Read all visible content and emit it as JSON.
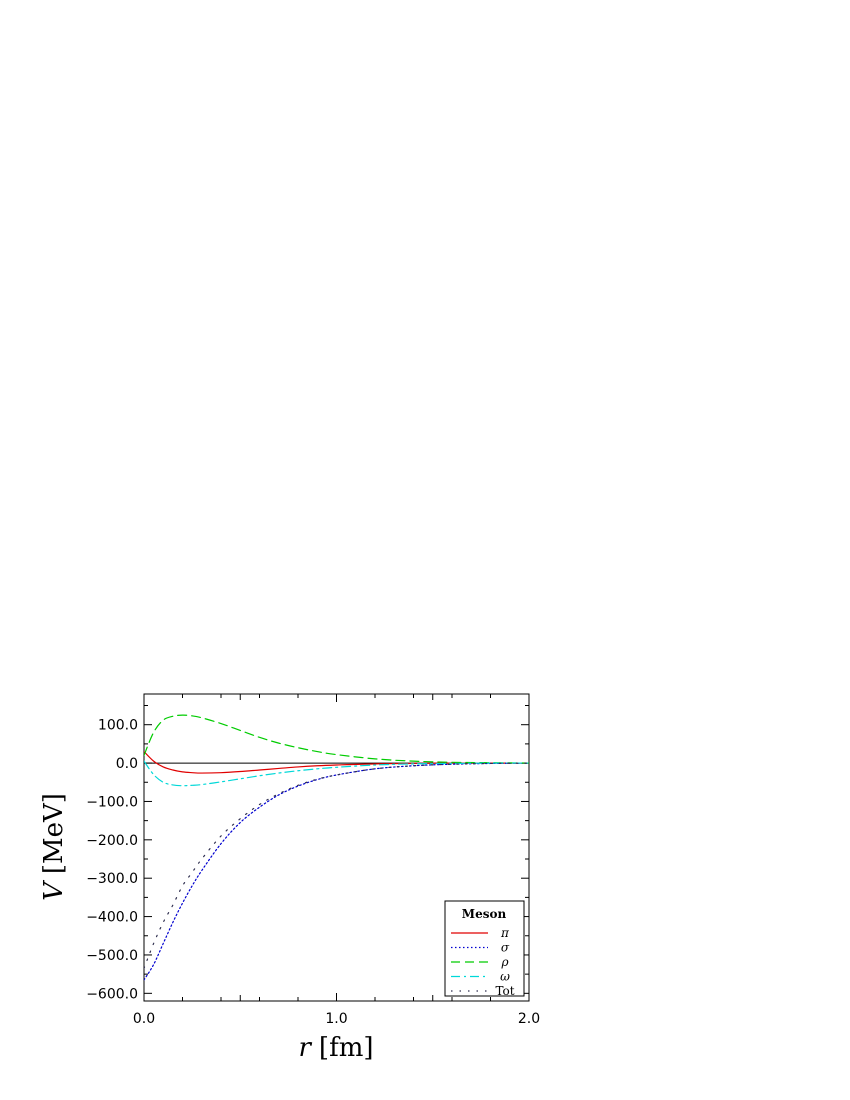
{
  "chart_data": {
    "type": "line",
    "xlabel_var": "r",
    "xlabel_unit": "[fm]",
    "ylabel_var": "V",
    "ylabel_unit": "[MeV]",
    "xlim": [
      0,
      2
    ],
    "ylim": [
      -620,
      180
    ],
    "x_ticks": [
      0,
      1,
      2
    ],
    "x_tick_labels": [
      "0.0",
      "1.0",
      "2.0"
    ],
    "y_ticks": [
      100,
      0,
      -100,
      -200,
      -300,
      -400,
      -500,
      -600
    ],
    "y_tick_labels": [
      "100.0",
      "0.0",
      "−100.0",
      "−200.0",
      "−300.0",
      "−400.0",
      "−500.0",
      "−600.0"
    ],
    "legend": {
      "title": "Meson",
      "placement": "bottom-right"
    },
    "x": [
      0.0,
      0.05,
      0.1,
      0.15,
      0.2,
      0.25,
      0.3,
      0.4,
      0.5,
      0.6,
      0.7,
      0.8,
      0.9,
      1.0,
      1.2,
      1.4,
      1.6,
      1.8,
      2.0
    ],
    "series": [
      {
        "name": "π",
        "color": "#e00000",
        "dash": "solid",
        "values": [
          30,
          5,
          -10,
          -18,
          -23,
          -25,
          -26,
          -25,
          -22,
          -18,
          -14,
          -10,
          -7,
          -5,
          -2,
          -1,
          0,
          0,
          0
        ]
      },
      {
        "name": "σ",
        "color": "#0000d0",
        "dash": "dotted",
        "values": [
          -565,
          -525,
          -470,
          -415,
          -365,
          -320,
          -280,
          -210,
          -155,
          -115,
          -83,
          -60,
          -43,
          -31,
          -15,
          -7,
          -3,
          -1,
          0
        ]
      },
      {
        "name": "ρ",
        "color": "#00cc00",
        "dash": "dashed",
        "values": [
          20,
          80,
          112,
          122,
          125,
          123,
          118,
          103,
          85,
          67,
          52,
          40,
          30,
          22,
          11,
          5,
          2,
          1,
          0
        ]
      },
      {
        "name": "ω",
        "color": "#00d8d8",
        "dash": "dashdot",
        "values": [
          5,
          -30,
          -50,
          -57,
          -59,
          -58,
          -56,
          -49,
          -41,
          -33,
          -26,
          -20,
          -15,
          -11,
          -5,
          -2,
          -1,
          0,
          0
        ]
      },
      {
        "name": "Tot",
        "color": "#303050",
        "dash": "sparse",
        "values": [
          -535,
          -470,
          -415,
          -370,
          -320,
          -285,
          -250,
          -190,
          -145,
          -108,
          -80,
          -58,
          -42,
          -31,
          -15,
          -7,
          -3,
          -1,
          0
        ]
      }
    ]
  }
}
